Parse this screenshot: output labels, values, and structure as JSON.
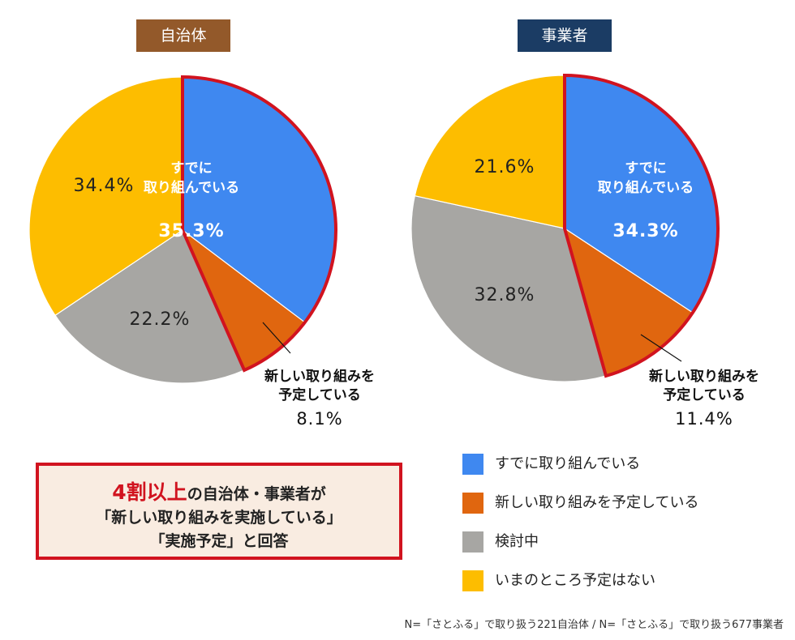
{
  "badges": [
    "自治体",
    "事業者"
  ],
  "legend": [
    {
      "label": "すでに取り組んでいる",
      "color": "#3f88f0"
    },
    {
      "label": "新しい取り組みを予定している",
      "color": "#e0660f"
    },
    {
      "label": "検討中",
      "color": "#a7a6a3"
    },
    {
      "label": "いまのところ予定はない",
      "color": "#fdbd00"
    }
  ],
  "highlight_color": "#d1131f",
  "chart_data": [
    {
      "type": "pie",
      "title": "自治体",
      "categories": [
        "すでに取り組んでいる",
        "新しい取り組みを予定している",
        "検討中",
        "いまのところ予定はない"
      ],
      "values": [
        35.3,
        8.1,
        22.2,
        34.4
      ],
      "labels": [
        "35.3%",
        "8.1%",
        "22.2%",
        "34.4%"
      ],
      "inner_label_lines": [
        "すでに",
        "取り組んでいる"
      ],
      "callout_lines": [
        "新しい取り組みを",
        "予定している"
      ],
      "highlighted_slices": [
        0,
        1
      ]
    },
    {
      "type": "pie",
      "title": "事業者",
      "categories": [
        "すでに取り組んでいる",
        "新しい取り組みを予定している",
        "検討中",
        "いまのところ予定はない"
      ],
      "values": [
        34.3,
        11.4,
        32.8,
        21.6
      ],
      "labels": [
        "34.3%",
        "11.4%",
        "32.8%",
        "21.6%"
      ],
      "inner_label_lines": [
        "すでに",
        "取り組んでいる"
      ],
      "callout_lines": [
        "新しい取り組みを",
        "予定している"
      ],
      "highlighted_slices": [
        0,
        1
      ]
    }
  ],
  "message": {
    "highlight": "4割以上",
    "line1_rest": "の自治体・事業者が",
    "line2": "「新しい取り組みを実施している」",
    "line3": "「実施予定」と回答"
  },
  "footnote": "N=「さとふる」で取り扱う221自治体 / N=「さとふる」で取り扱う677事業者"
}
